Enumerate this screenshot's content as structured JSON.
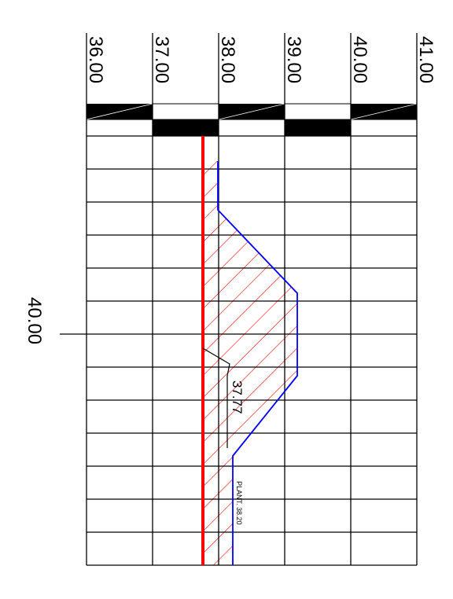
{
  "axis_labels": [
    "36.00",
    "37.00",
    "38.00",
    "39.00",
    "40.00",
    "41.00"
  ],
  "station_label": "40.00",
  "level_annotation": "37.77",
  "plant_label": "PLANT. 38.20",
  "colors": {
    "grid": "#000000",
    "terrain": "#0000ff",
    "design_line": "#ff0000",
    "hatch": "#ff0000",
    "background": "#ffffff"
  }
}
